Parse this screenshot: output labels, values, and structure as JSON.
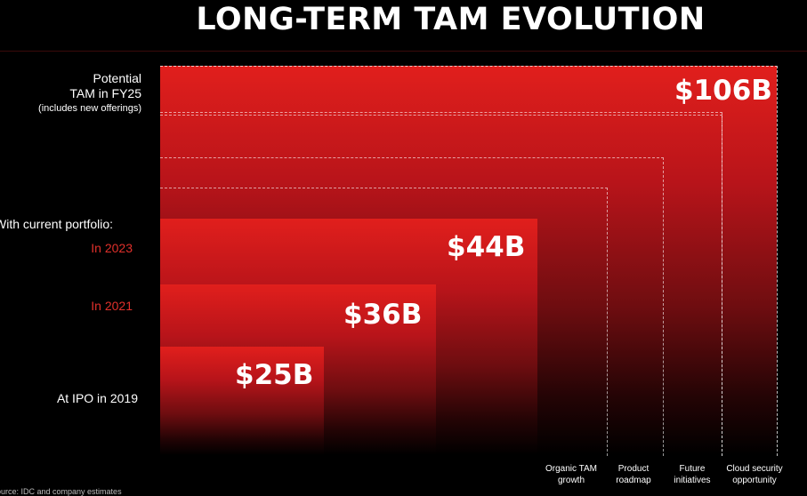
{
  "chart_data": {
    "type": "bar",
    "title": "LONG-TERM TAM EVOLUTION",
    "row_labels": {
      "potential": [
        "Potential",
        "TAM in FY25",
        "(includes new offerings)"
      ],
      "current_portfolio": "With current portfolio:",
      "in_2023": "In 2023",
      "in_2021": "In 2021",
      "ipo": "At IPO in 2019"
    },
    "series": [
      {
        "label": "At IPO in 2019",
        "value": 25,
        "value_label": "$25B"
      },
      {
        "label": "In 2021",
        "value": 36,
        "value_label": "$36B"
      },
      {
        "label": "In 2023",
        "value": 44,
        "value_label": "$44B"
      },
      {
        "label": "Potential TAM in FY25",
        "value": 106,
        "value_label": "$106B"
      }
    ],
    "growth_categories": [
      [
        "Organic TAM",
        "growth"
      ],
      [
        "Product",
        "roadmap"
      ],
      [
        "Future",
        "initiatives"
      ],
      [
        "Cloud security",
        "opportunity"
      ]
    ],
    "unit": "$B",
    "colors": {
      "bar_top": "#e11f1c",
      "bar_bottom": "#000000",
      "highlight_label": "#e0302b"
    }
  },
  "source": "Source: IDC and company estimates"
}
